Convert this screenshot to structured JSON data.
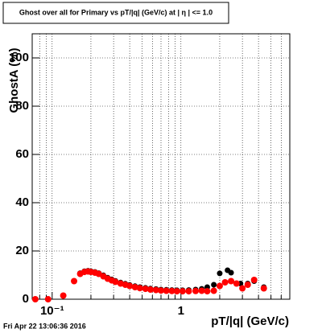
{
  "chart_data": {
    "type": "scatter",
    "title": "Ghost over all for Primary vs pT/|q| (GeV/c) at | η | <= 1.0",
    "x_label": "pT/|q| (GeV/c)",
    "y_label": "GhostA (%)",
    "timestamp": "Fri Apr 22 13:06:36 2016",
    "log_x": true,
    "grid": true,
    "xlim": [
      0.07,
      7
    ],
    "ylim": [
      0,
      110
    ],
    "xticks": [
      {
        "value": 0.1,
        "label": "10⁻¹"
      },
      1
    ],
    "xminorticks": [
      0.08,
      0.09,
      0.2,
      0.3,
      0.4,
      0.5,
      0.6,
      0.7,
      0.8,
      0.9,
      2,
      3,
      4,
      5,
      6,
      7
    ],
    "yticks": [
      0,
      20,
      40,
      60,
      80,
      100
    ],
    "series": [
      {
        "color": "#000000",
        "x": [
          0.074,
          0.093,
          0.122,
          0.148,
          0.165,
          0.178,
          0.19,
          0.2,
          0.215,
          0.23,
          0.25,
          0.27,
          0.29,
          0.31,
          0.34,
          0.37,
          0.4,
          0.44,
          0.48,
          0.53,
          0.58,
          0.64,
          0.7,
          0.77,
          0.85,
          0.93,
          1.03,
          1.15,
          1.3,
          1.45,
          1.6,
          1.8,
          2.0,
          2.3,
          2.45,
          2.9,
          3.3,
          3.7,
          4.4
        ],
        "values": [
          0,
          0,
          1.5,
          7.5,
          10.8,
          11.6,
          11.8,
          11.6,
          11.3,
          10.8,
          9.9,
          8.9,
          8.2,
          7.6,
          6.9,
          6.4,
          5.9,
          5.4,
          5.0,
          4.7,
          4.4,
          4.2,
          4.0,
          3.9,
          3.8,
          3.7,
          3.7,
          3.8,
          4.0,
          4.3,
          5.0,
          6.0,
          10.7,
          12,
          11,
          6.5,
          6.5,
          7.5,
          5
        ]
      },
      {
        "color": "#ff0000",
        "x": [
          0.074,
          0.093,
          0.122,
          0.148,
          0.165,
          0.178,
          0.19,
          0.2,
          0.215,
          0.23,
          0.25,
          0.27,
          0.29,
          0.31,
          0.34,
          0.37,
          0.4,
          0.44,
          0.48,
          0.53,
          0.58,
          0.64,
          0.7,
          0.77,
          0.85,
          0.93,
          1.03,
          1.15,
          1.3,
          1.45,
          1.6,
          1.8,
          2.0,
          2.2,
          2.45,
          2.7,
          3.0,
          3.3,
          3.7,
          4.4
        ],
        "values": [
          0,
          0,
          1.5,
          7.5,
          10.5,
          11.3,
          11.5,
          11.3,
          11,
          10.5,
          9.5,
          8.5,
          7.8,
          7.2,
          6.5,
          6,
          5.5,
          5,
          4.6,
          4.3,
          4,
          3.8,
          3.6,
          3.5,
          3.4,
          3.3,
          3.3,
          3.3,
          3.4,
          3.5,
          3.3,
          3.5,
          5.5,
          7,
          7.5,
          6.5,
          4.5,
          6,
          8,
          4.5
        ]
      }
    ]
  }
}
